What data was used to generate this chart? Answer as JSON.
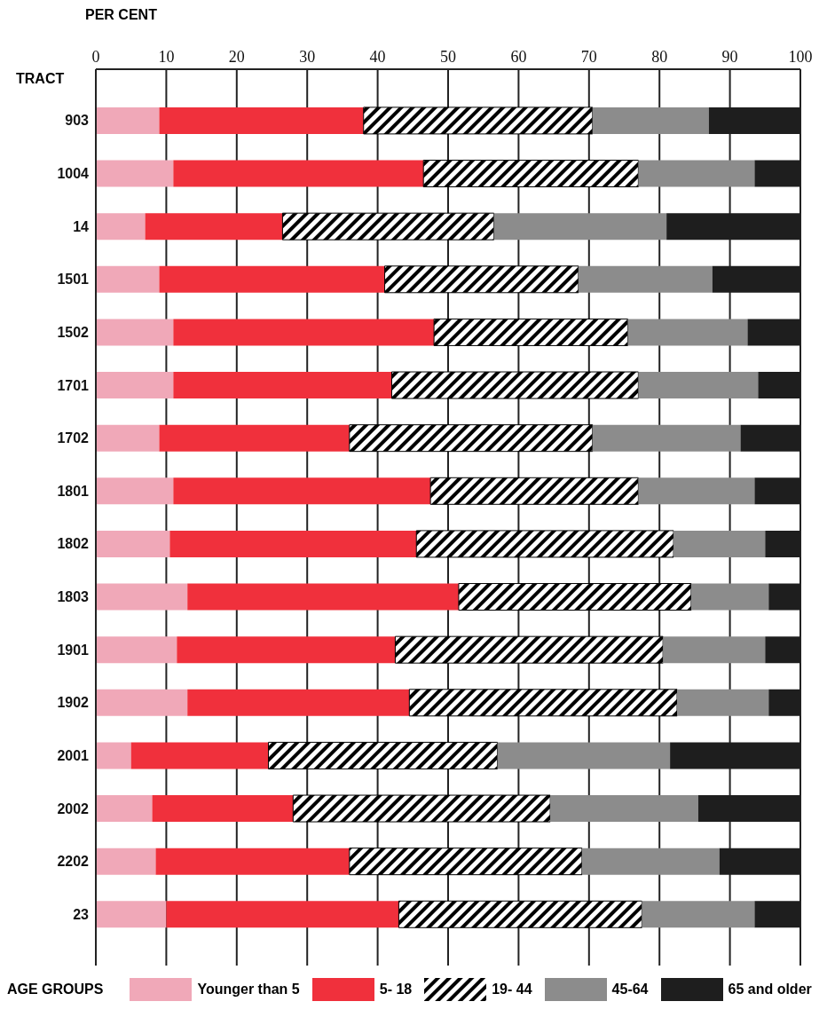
{
  "chart_data": {
    "type": "bar",
    "orientation": "horizontal",
    "stacked": true,
    "xlabel": "PER CENT",
    "ylabel": "TRACT",
    "legend_title": "AGE GROUPS",
    "categories": [
      "903",
      "1004",
      "14",
      "1501",
      "1502",
      "1701",
      "1702",
      "1801",
      "1802",
      "1803",
      "1901",
      "1902",
      "2001",
      "2002",
      "2202",
      "23"
    ],
    "series": [
      {
        "name": "Younger than 5",
        "color": "#f0a8b8",
        "values": [
          9,
          11,
          7,
          9,
          11,
          11,
          9,
          11,
          10.5,
          13,
          11.5,
          13,
          5,
          8,
          8.5,
          10
        ]
      },
      {
        "name": "5- 18",
        "color": "#f0303c",
        "values": [
          29,
          35.5,
          19.5,
          32,
          37,
          31,
          27,
          36.5,
          35,
          38.5,
          31,
          31.5,
          19.5,
          20,
          27.5,
          33
        ]
      },
      {
        "name": "19- 44",
        "color": "#000000",
        "values": [
          32.5,
          30.5,
          30,
          27.5,
          27.5,
          35,
          34.5,
          29.5,
          36.5,
          33,
          38,
          38,
          32.5,
          36.5,
          33,
          34.5
        ]
      },
      {
        "name": "45-64",
        "color": "#8c8c8c",
        "values": [
          16.5,
          16.5,
          24.5,
          19,
          17,
          17,
          21,
          16.5,
          13,
          11,
          14.5,
          13,
          24.5,
          21,
          19.5,
          16
        ]
      },
      {
        "name": "65 and older",
        "color": "#1e1e1e",
        "values": [
          13,
          6.5,
          19,
          12.5,
          7.5,
          6,
          8.5,
          6.5,
          5,
          4.5,
          5,
          4.5,
          18.5,
          14.5,
          11.5,
          6.5
        ]
      }
    ],
    "xlim": [
      0,
      100
    ],
    "xticks": [
      0,
      10,
      20,
      30,
      40,
      50,
      60,
      70,
      80,
      90,
      100
    ],
    "grid": "x",
    "legend": "bottom"
  }
}
